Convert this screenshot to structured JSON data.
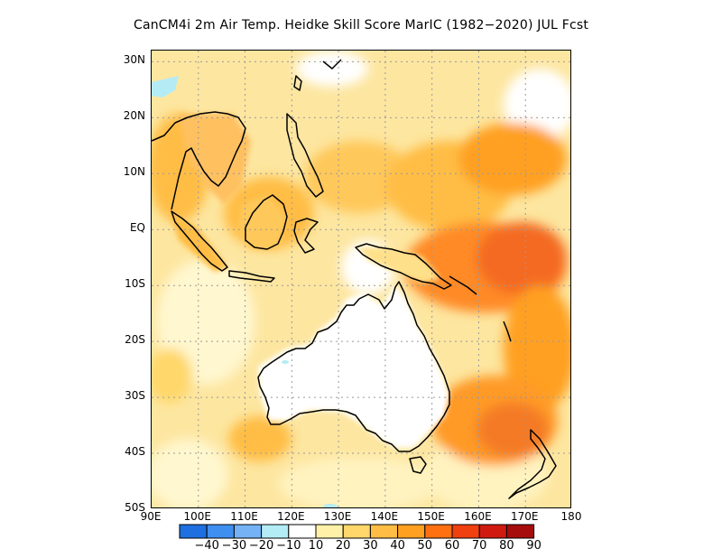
{
  "title": "CanCM4i  2m Air Temp. Heidke Skill Score MarIC (1982−2020) JUL Fcst",
  "map": {
    "lat_labels": [
      "30N",
      "20N",
      "10N",
      "EQ",
      "10S",
      "20S",
      "30S",
      "40S",
      "50S"
    ],
    "lon_labels": [
      "90E",
      "100E",
      "110E",
      "120E",
      "130E",
      "140E",
      "150E",
      "160E",
      "170E",
      "180"
    ],
    "lon_range": [
      90,
      180
    ],
    "lat_range": [
      -50,
      32
    ]
  },
  "colorbar": {
    "labels": [
      "−40",
      "−30",
      "−20",
      "−10",
      "10",
      "20",
      "30",
      "40",
      "50",
      "60",
      "70",
      "80",
      "90"
    ],
    "colors": [
      "#1e6fe0",
      "#3f8ff0",
      "#75b2f5",
      "#b4ecf5",
      "#ffffff",
      "#fff2a8",
      "#ffd76a",
      "#ffbd45",
      "#ffa020",
      "#ff7010",
      "#f04010",
      "#d01a10",
      "#a60c0c"
    ]
  },
  "colors": {
    "ocean_base": "#fde8a0",
    "land_base": "#ffffff",
    "coast": "#000000",
    "grid": "#9a9a9a"
  }
}
